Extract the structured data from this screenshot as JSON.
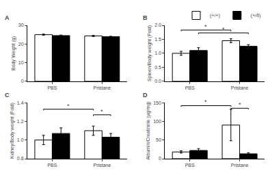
{
  "chart_data": [
    {
      "type": "bar",
      "title": "A",
      "ylabel": "Body Weight (g)",
      "categories": [
        "PBS",
        "Pristane"
      ],
      "series": [
        {
          "name": "(+/+)",
          "color": "white",
          "values": [
            25.0,
            24.3
          ],
          "errors": [
            0.3,
            0.3
          ]
        },
        {
          "name": "(+/δ)",
          "color": "black",
          "values": [
            24.5,
            23.9
          ],
          "errors": [
            0.3,
            0.25
          ]
        }
      ],
      "ylim": [
        0,
        30
      ],
      "yticks": [
        0,
        10,
        20,
        30
      ],
      "grid": false,
      "annotations": []
    },
    {
      "type": "bar",
      "title": "B",
      "ylabel": "Spleen/Body weight (Fold)",
      "categories": [
        "PBS",
        "Pristane"
      ],
      "series": [
        {
          "name": "(+/+)",
          "color": "white",
          "values": [
            1.0,
            1.45
          ],
          "errors": [
            0.07,
            0.07
          ]
        },
        {
          "name": "(+/δ)",
          "color": "black",
          "values": [
            1.1,
            1.25
          ],
          "errors": [
            0.1,
            0.06
          ]
        }
      ],
      "ylim": [
        0.0,
        2.0
      ],
      "yticks": [
        {
          "value": 0.0,
          "label": "0.0"
        },
        0.5,
        {
          "value": 1.0,
          "label": "1.0"
        },
        1.5,
        {
          "value": 2.0,
          "label": "2.0"
        }
      ],
      "grid": false,
      "legend": "upper right",
      "annotations": [
        {
          "text": "*",
          "y": 1.83,
          "from": {
            "category": "PBS",
            "series": "(+/+)"
          },
          "to": {
            "category": "Pristane",
            "series": "(+/+)"
          }
        },
        {
          "text": "*",
          "y": 1.73,
          "from": {
            "category": "PBS",
            "series": "(+/δ)"
          },
          "to": {
            "category": "Pristane",
            "series": "(+/δ)"
          }
        }
      ]
    },
    {
      "type": "bar",
      "title": "C",
      "ylabel": "Kidney/Body weight (Fold)",
      "categories": [
        "PBS",
        "Pristane"
      ],
      "series": [
        {
          "name": "(+/+)",
          "color": "white",
          "values": [
            1.0,
            1.1
          ],
          "errors": [
            0.05,
            0.05
          ]
        },
        {
          "name": "(+/δ)",
          "color": "black",
          "values": [
            1.07,
            1.03
          ],
          "errors": [
            0.06,
            0.04
          ]
        }
      ],
      "ylim": [
        0.8,
        1.4
      ],
      "yticks": [
        0.8,
        {
          "value": 1.0,
          "label": "1.0"
        },
        1.2,
        1.4
      ],
      "grid": false,
      "annotations": [
        {
          "text": "*",
          "y": 1.33,
          "from": {
            "category": "PBS",
            "series": "(+/+)"
          },
          "to": {
            "category": "Pristane",
            "series": "(+/+)"
          }
        },
        {
          "text": "*",
          "y": 1.27,
          "from": {
            "category": "Pristane",
            "series": "(+/+)"
          },
          "to": {
            "category": "Pristane",
            "series": "(+/δ)"
          }
        }
      ]
    },
    {
      "type": "bar",
      "title": "D",
      "ylabel": "Albumin/Creatinine (μg/mg)",
      "categories": [
        "PBS",
        "Pristane"
      ],
      "series": [
        {
          "name": "(+/+)",
          "color": "white",
          "values": [
            18.0,
            90.0
          ],
          "errors": [
            3.0,
            42.0
          ]
        },
        {
          "name": "(+/δ)",
          "color": "black",
          "values": [
            22.0,
            13.0
          ],
          "errors": [
            5.0,
            3.0
          ]
        }
      ],
      "ylim": [
        0,
        150
      ],
      "yticks": [
        0,
        50,
        100,
        150
      ],
      "grid": false,
      "annotations": [
        {
          "text": "*",
          "y": 142,
          "from": {
            "category": "PBS",
            "series": "(+/+)"
          },
          "to": {
            "category": "Pristane",
            "series": "(+/+)"
          }
        },
        {
          "text": "*",
          "y": 135,
          "from": {
            "category": "Pristane",
            "series": "(+/+)"
          },
          "to": {
            "category": "Pristane",
            "series": "(+/δ)"
          }
        }
      ]
    }
  ]
}
